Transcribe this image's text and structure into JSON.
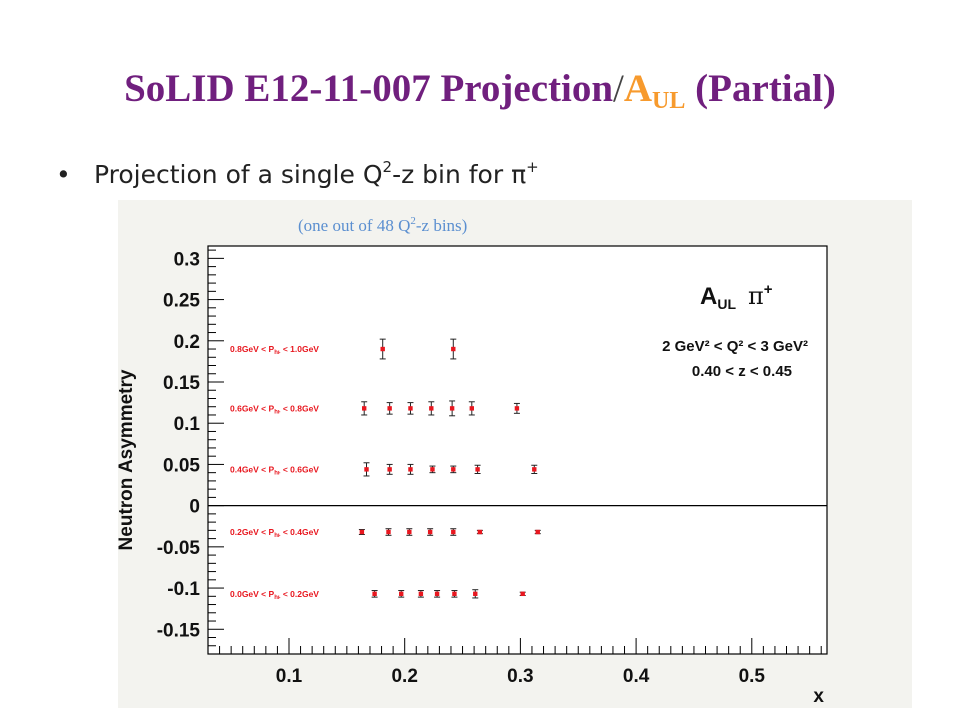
{
  "slide": {
    "title_main": "SoLID E12-11-007 Projection",
    "title_slash": "/",
    "title_a": "A",
    "title_ul": "UL",
    "title_tail": " (Partial)",
    "bullet_text": "Projection of a single Q",
    "bullet_sup": "2",
    "bullet_rest": "-z bin for π",
    "bullet_sup2": "+"
  },
  "colors": {
    "title": "#701f7e",
    "title_accent": "#f79a2d",
    "marker": "#e8171f",
    "annotation_blue": "#5b8fd0",
    "frame_bg": "#f3f3ef"
  },
  "chart_data": {
    "type": "scatter",
    "subtitle": "(one out of 48 Q",
    "subtitle_sup": "2",
    "subtitle_rest": "-z bins)",
    "xlabel": "x",
    "ylabel": "Neutron Asymmetry",
    "xlim": [
      0.03,
      0.565
    ],
    "ylim": [
      -0.18,
      0.315
    ],
    "x_ticks": [
      0.1,
      0.2,
      0.3,
      0.4,
      0.5
    ],
    "x_tick_labels": [
      "0.1",
      "0.2",
      "0.3",
      "0.4",
      "0.5"
    ],
    "y_ticks": [
      -0.15,
      -0.1,
      -0.05,
      0,
      0.05,
      0.1,
      0.15,
      0.2,
      0.25,
      0.3
    ],
    "y_tick_labels": [
      "-0.15",
      "-0.1",
      "-0.05",
      "0",
      "0.05",
      "0.1",
      "0.15",
      "0.2",
      "0.25",
      "0.3"
    ],
    "zero_line": true,
    "grid": false,
    "legend": {
      "title_a": "A",
      "title_sub": "UL",
      "title_pi": "π",
      "title_sup": "+",
      "q2_line": "2 GeV² < Q² < 3 GeV²",
      "z_line": "0.40 < z < 0.45"
    },
    "series": [
      {
        "name": "0.8GeV < P_hⱶ < 1.0GeV",
        "label": "0.8GeV < Phⱶ < 1.0GeV",
        "label_pre": "0.8GeV < P",
        "label_sub": "hⱶ",
        "label_post": " < 1.0GeV",
        "x": [
          0.181,
          0.242
        ],
        "y": [
          0.19,
          0.19
        ],
        "err": [
          0.012,
          0.012
        ]
      },
      {
        "name": "0.6GeV < P_hⱶ < 0.8GeV",
        "label_pre": "0.6GeV < P",
        "label_sub": "hⱶ",
        "label_post": " < 0.8GeV",
        "x": [
          0.165,
          0.187,
          0.205,
          0.223,
          0.241,
          0.258,
          0.297
        ],
        "y": [
          0.118,
          0.118,
          0.118,
          0.118,
          0.118,
          0.118,
          0.118
        ],
        "err": [
          0.008,
          0.007,
          0.007,
          0.008,
          0.009,
          0.008,
          0.006
        ]
      },
      {
        "name": "0.4GeV < P_hⱶ < 0.6GeV",
        "label_pre": "0.4GeV < P",
        "label_sub": "hⱶ",
        "label_post": " < 0.6GeV",
        "x": [
          0.167,
          0.187,
          0.205,
          0.224,
          0.242,
          0.263,
          0.312
        ],
        "y": [
          0.044,
          0.044,
          0.044,
          0.044,
          0.044,
          0.044,
          0.044
        ],
        "err": [
          0.008,
          0.006,
          0.006,
          0.004,
          0.004,
          0.005,
          0.005
        ]
      },
      {
        "name": "0.2GeV < P_hⱶ < 0.4GeV",
        "label_pre": "0.2GeV < P",
        "label_sub": "hⱶ",
        "label_post": " < 0.4GeV",
        "x": [
          0.163,
          0.186,
          0.204,
          0.222,
          0.242,
          0.265,
          0.315
        ],
        "y": [
          -0.032,
          -0.032,
          -0.032,
          -0.032,
          -0.032,
          -0.032,
          -0.032
        ],
        "err": [
          0.003,
          0.004,
          0.004,
          0.004,
          0.004,
          0.002,
          0.002
        ]
      },
      {
        "name": "0.0GeV < P_hⱶ < 0.2GeV",
        "label_pre": "0.0GeV < P",
        "label_sub": "hⱶ",
        "label_post": " < 0.2GeV",
        "x": [
          0.174,
          0.197,
          0.214,
          0.228,
          0.243,
          0.261,
          0.302
        ],
        "y": [
          -0.107,
          -0.107,
          -0.107,
          -0.107,
          -0.107,
          -0.107,
          -0.107
        ],
        "err": [
          0.004,
          0.004,
          0.004,
          0.004,
          0.004,
          0.005,
          0.002
        ]
      }
    ]
  }
}
